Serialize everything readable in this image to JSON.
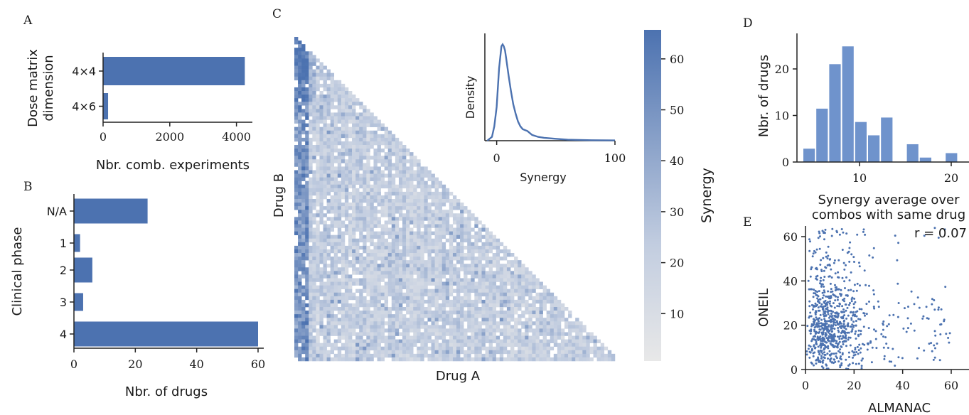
{
  "figure": {
    "panels": {
      "A": {
        "letter": "A"
      },
      "B": {
        "letter": "B"
      },
      "C": {
        "letter": "C"
      },
      "D": {
        "letter": "D"
      },
      "E": {
        "letter": "E"
      }
    },
    "colors": {
      "bar": "#4c72b0",
      "hist": "#6f93cc",
      "heat_high": "#4c72b0",
      "heat_low": "#e8e8e8"
    }
  },
  "chart_data": [
    {
      "id": "A",
      "type": "bar",
      "orientation": "horizontal",
      "categories": [
        "4x4",
        "4x6"
      ],
      "values": [
        4250,
        150
      ],
      "xlabel": "Nbr. comb. experiments",
      "ylabel_line1": "Dose matrix",
      "ylabel_line2": "dimension",
      "xticks": [
        0,
        2000,
        4000
      ],
      "xlim": [
        0,
        4500
      ]
    },
    {
      "id": "B",
      "type": "bar",
      "orientation": "horizontal",
      "categories": [
        "N/A",
        "1",
        "2",
        "3",
        "4"
      ],
      "values": [
        24,
        2,
        6,
        3,
        60
      ],
      "xlabel": "Nbr. of drugs",
      "ylabel": "Clinical phase",
      "xticks": [
        0,
        20,
        40,
        60
      ],
      "xlim": [
        0,
        62
      ]
    },
    {
      "id": "C",
      "type": "heatmap",
      "xlabel": "Drug A",
      "ylabel": "Drug B",
      "colorbar_label": "Synergy",
      "colorbar_ticks": [
        10,
        20,
        30,
        40,
        50,
        60
      ],
      "colorbar_range": [
        0,
        65
      ],
      "triangle": "lower"
    },
    {
      "id": "C-inset",
      "type": "line",
      "xlabel": "Synergy",
      "ylabel": "Density",
      "xticks": [
        0,
        100
      ],
      "xlim": [
        -10,
        100
      ],
      "x": [
        -8,
        -4,
        -2,
        0,
        2,
        4,
        5,
        6,
        7,
        8,
        10,
        12,
        14,
        16,
        18,
        20,
        22,
        24,
        26,
        28,
        30,
        35,
        40,
        50,
        60,
        80,
        100
      ],
      "y": [
        0.0,
        0.004,
        0.015,
        0.035,
        0.075,
        0.098,
        0.1,
        0.098,
        0.094,
        0.086,
        0.068,
        0.052,
        0.038,
        0.028,
        0.02,
        0.015,
        0.012,
        0.011,
        0.01,
        0.008,
        0.006,
        0.004,
        0.003,
        0.002,
        0.001,
        0.0005,
        0.0003
      ]
    },
    {
      "id": "D",
      "type": "bar",
      "bins_left": [
        5,
        6.4,
        7.8,
        9.2,
        10.6,
        12.0,
        13.4,
        14.8,
        16.2,
        17.6,
        19.0,
        20.4
      ],
      "bin_width": 1.4,
      "values": [
        3,
        12,
        22,
        26,
        9,
        6,
        10,
        0,
        4,
        1,
        0,
        2
      ],
      "xlabel_line1": "Synergy average over",
      "xlabel_line2": "combos with same drug",
      "ylabel": "Nbr. of drugs",
      "xticks": [
        10,
        20
      ],
      "yticks": [
        0,
        10,
        20
      ],
      "xlim": [
        4,
        22
      ],
      "ylim": [
        0,
        27
      ]
    },
    {
      "id": "E",
      "type": "scatter",
      "xlabel": "ALMANAC",
      "ylabel": "ONEIL",
      "annotation": "r = 0.07",
      "xticks": [
        0,
        20,
        40,
        60
      ],
      "yticks": [
        0,
        20,
        40,
        60
      ],
      "xlim": [
        0,
        65
      ],
      "ylim": [
        0,
        65
      ]
    }
  ]
}
